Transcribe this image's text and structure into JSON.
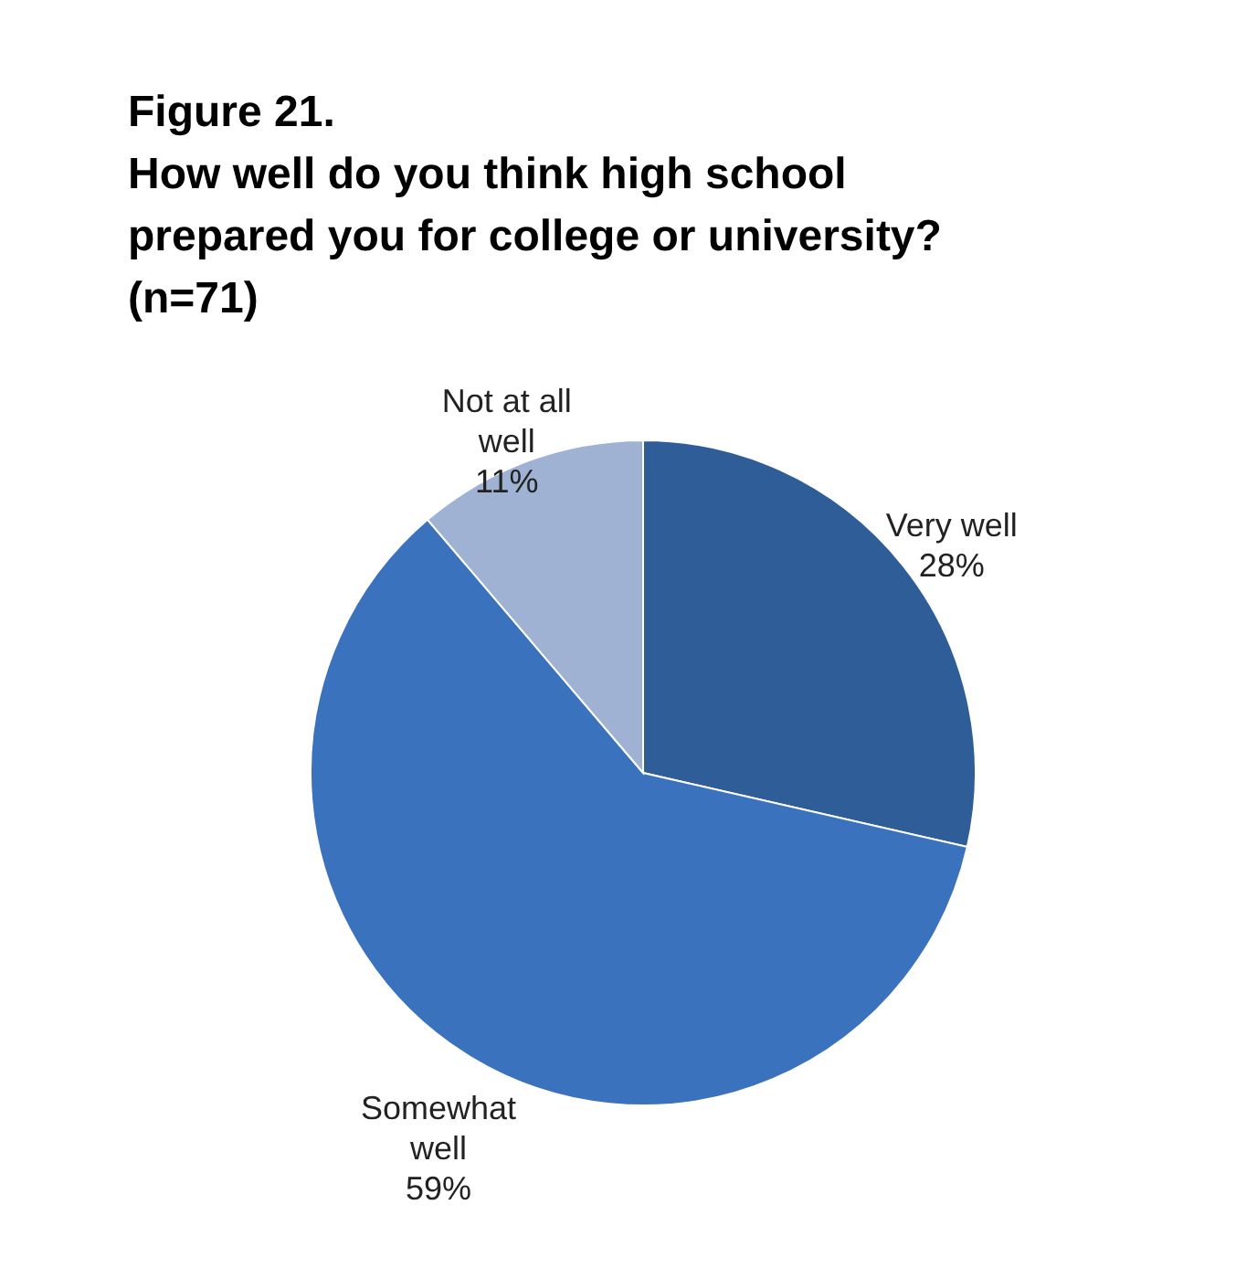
{
  "chart_data": {
    "type": "pie",
    "title": "Figure 21.",
    "subtitle": "How well do you think high school prepared you for college or university? (n=71)",
    "categories": [
      "Very well",
      "Somewhat well",
      "Not at all well"
    ],
    "values": [
      28,
      59,
      11
    ],
    "value_labels": [
      "28%",
      "59%",
      "11%"
    ],
    "colors": [
      "#2f5d98",
      "#3a72bd",
      "#9fb2d3"
    ]
  }
}
